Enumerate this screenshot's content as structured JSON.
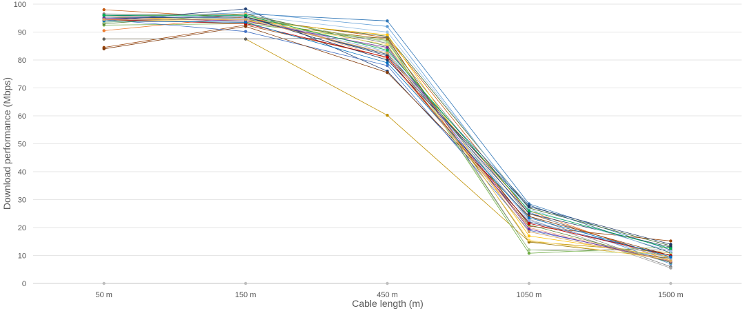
{
  "chart_data": {
    "type": "line",
    "title": "",
    "xlabel": "Cable length (m)",
    "ylabel": "Download performance (Mbps)",
    "categories": [
      "50 m",
      "150 m",
      "450 m",
      "1050 m",
      "1500 m"
    ],
    "ylim": [
      0,
      100
    ],
    "yticks": [
      0,
      10,
      20,
      30,
      40,
      50,
      60,
      70,
      80,
      90,
      100
    ],
    "grid": true,
    "legend": "none",
    "baseline_series": {
      "name": "zero",
      "color": "#bfbfbf",
      "values": [
        0,
        0,
        0,
        0,
        0
      ]
    },
    "series": [
      {
        "name": "s1",
        "color": "#2e75b6",
        "values": [
          95.5,
          96.5,
          94.0,
          28.5,
          12.0
        ]
      },
      {
        "name": "s2",
        "color": "#c55a11",
        "values": [
          98.0,
          95.0,
          88.0,
          25.0,
          9.0
        ]
      },
      {
        "name": "s3",
        "color": "#7f7f7f",
        "values": [
          96.5,
          96.0,
          86.0,
          24.0,
          6.0
        ]
      },
      {
        "name": "s4",
        "color": "#bf9000",
        "values": [
          87.5,
          87.5,
          60.2,
          15.0,
          11.0
        ]
      },
      {
        "name": "s5",
        "color": "#264478",
        "values": [
          94.0,
          98.3,
          76.0,
          22.0,
          10.0
        ]
      },
      {
        "name": "s6",
        "color": "#70ad47",
        "values": [
          92.5,
          93.0,
          87.0,
          10.8,
          13.0
        ]
      },
      {
        "name": "s7",
        "color": "#ed7d31",
        "values": [
          90.5,
          95.5,
          82.0,
          26.0,
          8.0
        ]
      },
      {
        "name": "s8",
        "color": "#43682b",
        "values": [
          94.5,
          94.5,
          88.5,
          27.0,
          13.5
        ]
      },
      {
        "name": "s9",
        "color": "#9e480e",
        "values": [
          84.5,
          92.5,
          81.0,
          20.5,
          15.2
        ]
      },
      {
        "name": "s10",
        "color": "#5b9bd5",
        "values": [
          95.0,
          97.0,
          92.0,
          25.5,
          7.0
        ]
      },
      {
        "name": "s11",
        "color": "#a5a5a5",
        "values": [
          94.0,
          95.0,
          84.0,
          23.0,
          5.5
        ]
      },
      {
        "name": "s12",
        "color": "#ffc000",
        "values": [
          95.5,
          94.0,
          89.0,
          17.0,
          9.5
        ]
      },
      {
        "name": "s13",
        "color": "#4472c4",
        "values": [
          94.5,
          90.2,
          78.0,
          19.0,
          8.5
        ]
      },
      {
        "name": "s14",
        "color": "#255e91",
        "values": [
          96.0,
          95.0,
          82.0,
          28.0,
          11.0
        ]
      },
      {
        "name": "s15",
        "color": "#843c0c",
        "values": [
          84.0,
          92.0,
          75.5,
          24.0,
          10.0
        ]
      },
      {
        "name": "s16",
        "color": "#636363",
        "values": [
          87.5,
          87.5,
          88.0,
          12.0,
          12.0
        ]
      },
      {
        "name": "s17",
        "color": "#997300",
        "values": [
          94.0,
          93.5,
          87.5,
          14.8,
          9.0
        ]
      },
      {
        "name": "s18",
        "color": "#203864",
        "values": [
          95.0,
          95.5,
          81.5,
          25.0,
          13.0
        ]
      },
      {
        "name": "s19",
        "color": "#548235",
        "values": [
          93.0,
          96.5,
          85.0,
          21.0,
          7.5
        ]
      },
      {
        "name": "s20",
        "color": "#f4b183",
        "values": [
          95.5,
          96.5,
          80.5,
          20.0,
          8.0
        ]
      },
      {
        "name": "s21",
        "color": "#9dc3e6",
        "values": [
          95.0,
          96.0,
          90.0,
          26.5,
          11.5
        ]
      },
      {
        "name": "s22",
        "color": "#a9d18e",
        "values": [
          93.5,
          95.5,
          86.5,
          12.0,
          10.5
        ]
      },
      {
        "name": "s23",
        "color": "#ffd966",
        "values": [
          94.0,
          94.5,
          85.5,
          15.5,
          8.5
        ]
      },
      {
        "name": "s24",
        "color": "#8faadc",
        "values": [
          95.5,
          95.0,
          83.0,
          22.5,
          9.0
        ]
      },
      {
        "name": "s25",
        "color": "#1f3864",
        "values": [
          95.0,
          95.5,
          80.0,
          27.5,
          14.0
        ]
      },
      {
        "name": "s26",
        "color": "#c00000",
        "values": [
          94.5,
          93.0,
          81.0,
          21.5,
          10.0
        ]
      },
      {
        "name": "s27",
        "color": "#7030a0",
        "values": [
          95.0,
          94.0,
          84.5,
          19.5,
          7.8
        ]
      },
      {
        "name": "s28",
        "color": "#00b050",
        "values": [
          96.0,
          96.0,
          83.5,
          26.0,
          12.5
        ]
      },
      {
        "name": "s29",
        "color": "#0070c0",
        "values": [
          94.0,
          93.5,
          79.0,
          23.5,
          9.5
        ]
      },
      {
        "name": "s30",
        "color": "#d6a160",
        "values": [
          94.5,
          94.5,
          82.5,
          18.5,
          8.0
        ]
      }
    ]
  }
}
